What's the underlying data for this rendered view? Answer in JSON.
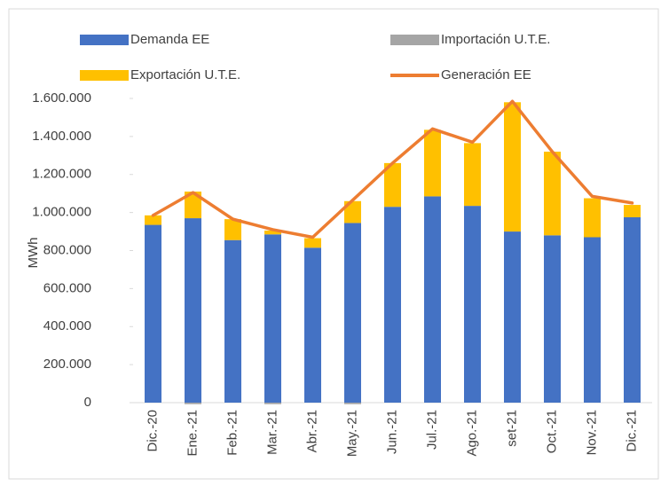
{
  "chart_data": {
    "type": "bar",
    "y_label": "MWh",
    "categories": [
      "Dic.-20",
      "Ene.-21",
      "Feb.-21",
      "Mar.-21",
      "Abr.-21",
      "May.-21",
      "Jun.-21",
      "Jul.-21",
      "Ago.-21",
      "set-21",
      "Oct.-21",
      "Nov.-21",
      "Dic.-21"
    ],
    "series": [
      {
        "name": "Demanda EE",
        "color": "#4472c4",
        "type": "bar",
        "values": [
          935000,
          970000,
          855000,
          885000,
          815000,
          945000,
          1030000,
          1085000,
          1035000,
          900000,
          880000,
          870000,
          975000
        ]
      },
      {
        "name": "Importación U.T.E.",
        "color": "#a5a5a5",
        "type": "bar",
        "values": [
          0,
          -8000,
          0,
          -8000,
          0,
          -8000,
          0,
          0,
          0,
          0,
          0,
          0,
          0
        ]
      },
      {
        "name": "Exportación U.T.E.",
        "color": "#ffc000",
        "type": "bar",
        "values": [
          50000,
          140000,
          110000,
          20000,
          50000,
          115000,
          230000,
          350000,
          330000,
          680000,
          440000,
          205000,
          65000
        ]
      },
      {
        "name": "Generación EE",
        "color": "#ed7d31",
        "type": "line",
        "values": [
          985000,
          1105000,
          965000,
          910000,
          870000,
          1065000,
          1260000,
          1440000,
          1370000,
          1585000,
          1320000,
          1085000,
          1050000
        ]
      }
    ],
    "ylim": [
      0,
      1600000
    ],
    "yticks": [
      0,
      {
        "value": 200000,
        "label": "200.000"
      },
      {
        "value": 400000,
        "label": "400.000"
      },
      {
        "value": 600000,
        "label": "600.000"
      },
      {
        "value": 800000,
        "label": "800.000"
      },
      {
        "value": 1000000,
        "label": "1.000.000"
      },
      {
        "value": 1200000,
        "label": "1.200.000"
      },
      {
        "value": 1400000,
        "label": "1.400.000"
      },
      {
        "value": 1600000,
        "label": "1.600.000"
      }
    ],
    "stacked": true
  }
}
